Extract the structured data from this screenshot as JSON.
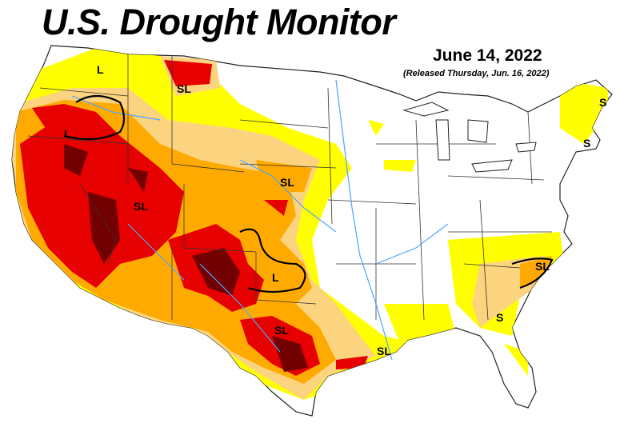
{
  "header": {
    "title": "U.S. Drought Monitor",
    "date": "June 14, 2022",
    "released": "(Released Thursday, Jun. 16, 2022)"
  },
  "colors": {
    "D0": "#ffff00",
    "D1": "#fcd37f",
    "D2": "#ffaa00",
    "D3": "#e60000",
    "D4": "#730000",
    "water": "#4da6ff",
    "border": "#333333"
  },
  "impact_labels": [
    {
      "text": "L"
    },
    {
      "text": "SL"
    },
    {
      "text": "L"
    },
    {
      "text": "SL"
    },
    {
      "text": "SL"
    },
    {
      "text": "L"
    },
    {
      "text": "SL"
    },
    {
      "text": "SL"
    },
    {
      "text": "S"
    },
    {
      "text": "S"
    },
    {
      "text": "SL"
    },
    {
      "text": "S"
    }
  ]
}
